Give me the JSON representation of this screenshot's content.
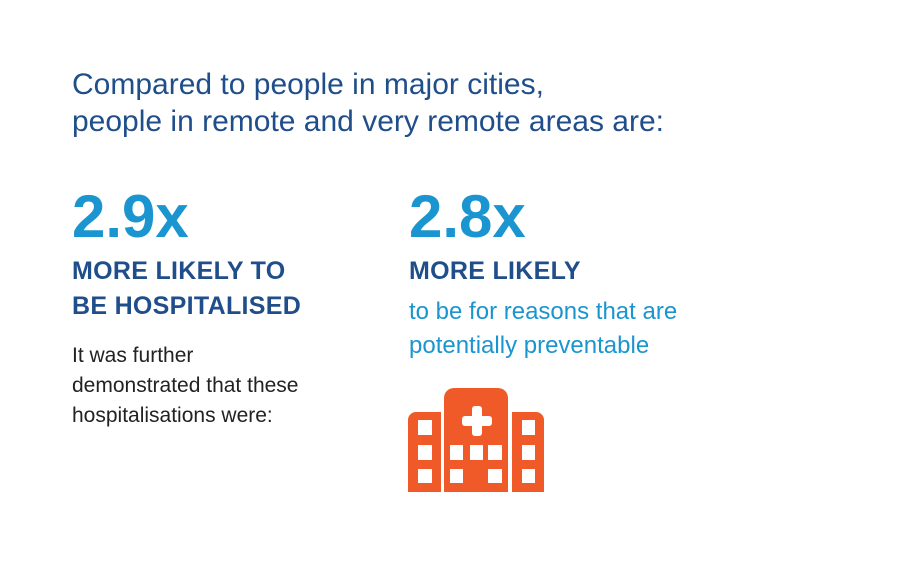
{
  "heading": {
    "line1": "Compared to people in major cities,",
    "line2": "people in remote and very remote areas are:"
  },
  "left": {
    "stat": "2.9x",
    "label_line1": "MORE LIKELY TO",
    "label_line2": "BE HOSPITALISED",
    "body_lines": [
      "It was further",
      "demonstrated that these",
      "hospitalisations were:"
    ]
  },
  "right": {
    "stat": "2.8x",
    "label_line1": "MORE LIKELY",
    "detail_lines": [
      "to be for reasons that are",
      "potentially preventable"
    ],
    "icon": "hospital-icon"
  },
  "colors": {
    "dark_blue": "#1f4e8a",
    "light_blue": "#1b95d0",
    "orange": "#f05a28"
  }
}
